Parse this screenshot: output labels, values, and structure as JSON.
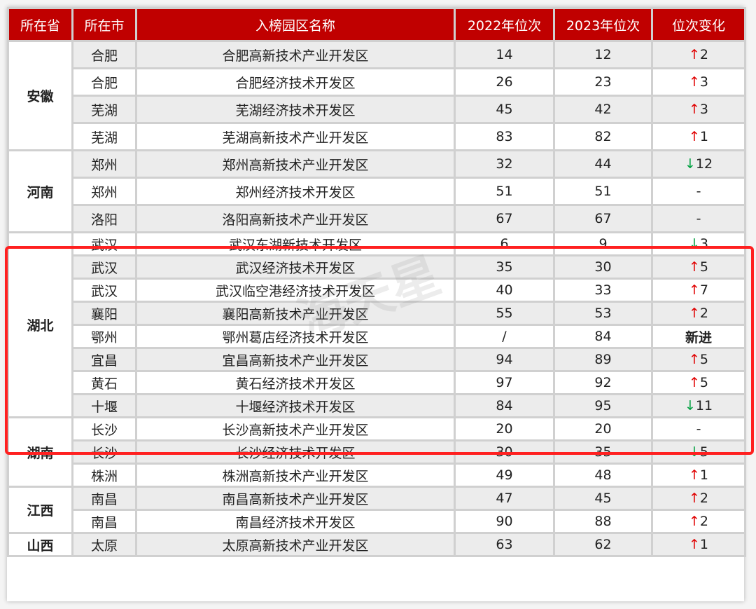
{
  "headers": [
    "所在省",
    "所在市",
    "入榜园区名称",
    "2022年位次",
    "2023年位次",
    "位次变化"
  ],
  "watermark": "海天星",
  "colors": {
    "header": "#c00000",
    "up": "#e00000",
    "down": "#00a040",
    "highlight": "#ff2020"
  },
  "groups": [
    {
      "province": "安徽",
      "size": "tall",
      "rows": [
        {
          "city": "合肥",
          "name": "合肥高新技术产业开发区",
          "y2022": "14",
          "y2023": "12",
          "dir": "up",
          "change": "2"
        },
        {
          "city": "合肥",
          "name": "合肥经济技术开发区",
          "y2022": "26",
          "y2023": "23",
          "dir": "up",
          "change": "3"
        },
        {
          "city": "芜湖",
          "name": "芜湖经济技术开发区",
          "y2022": "45",
          "y2023": "42",
          "dir": "up",
          "change": "3"
        },
        {
          "city": "芜湖",
          "name": "芜湖高新技术产业开发区",
          "y2022": "83",
          "y2023": "82",
          "dir": "up",
          "change": "1"
        }
      ]
    },
    {
      "province": "河南",
      "size": "tall",
      "rows": [
        {
          "city": "郑州",
          "name": "郑州高新技术产业开发区",
          "y2022": "32",
          "y2023": "44",
          "dir": "down",
          "change": "12"
        },
        {
          "city": "郑州",
          "name": "郑州经济技术开发区",
          "y2022": "51",
          "y2023": "51",
          "dir": "none",
          "change": "-"
        },
        {
          "city": "洛阳",
          "name": "洛阳高新技术产业开发区",
          "y2022": "67",
          "y2023": "67",
          "dir": "none",
          "change": "-"
        }
      ]
    },
    {
      "province": "湖北",
      "size": "short",
      "rows": [
        {
          "city": "武汉",
          "name": "武汉东湖新技术开发区",
          "y2022": "6",
          "y2023": "9",
          "dir": "down",
          "change": "3"
        },
        {
          "city": "武汉",
          "name": "武汉经济技术开发区",
          "y2022": "35",
          "y2023": "30",
          "dir": "up",
          "change": "5"
        },
        {
          "city": "武汉",
          "name": "武汉临空港经济技术开发区",
          "y2022": "40",
          "y2023": "33",
          "dir": "up",
          "change": "7"
        },
        {
          "city": "襄阳",
          "name": "襄阳高新技术产业开发区",
          "y2022": "55",
          "y2023": "53",
          "dir": "up",
          "change": "2"
        },
        {
          "city": "鄂州",
          "name": "鄂州葛店经济技术开发区",
          "y2022": "/",
          "y2023": "84",
          "dir": "new",
          "change": "新进"
        },
        {
          "city": "宜昌",
          "name": "宜昌高新技术产业开发区",
          "y2022": "94",
          "y2023": "89",
          "dir": "up",
          "change": "5"
        },
        {
          "city": "黄石",
          "name": "黄石经济技术开发区",
          "y2022": "97",
          "y2023": "92",
          "dir": "up",
          "change": "5"
        },
        {
          "city": "十堰",
          "name": "十堰经济技术开发区",
          "y2022": "84",
          "y2023": "95",
          "dir": "down",
          "change": "11"
        }
      ]
    },
    {
      "province": "湖南",
      "size": "short",
      "rows": [
        {
          "city": "长沙",
          "name": "长沙高新技术产业开发区",
          "y2022": "20",
          "y2023": "20",
          "dir": "none",
          "change": "-"
        },
        {
          "city": "长沙",
          "name": "长沙经济技术开发区",
          "y2022": "30",
          "y2023": "35",
          "dir": "down",
          "change": "5"
        },
        {
          "city": "株洲",
          "name": "株洲高新技术产业开发区",
          "y2022": "49",
          "y2023": "48",
          "dir": "up",
          "change": "1"
        }
      ]
    },
    {
      "province": "江西",
      "size": "short",
      "rows": [
        {
          "city": "南昌",
          "name": "南昌高新技术产业开发区",
          "y2022": "47",
          "y2023": "45",
          "dir": "up",
          "change": "2"
        },
        {
          "city": "南昌",
          "name": "南昌经济技术开发区",
          "y2022": "90",
          "y2023": "88",
          "dir": "up",
          "change": "2"
        }
      ]
    },
    {
      "province": "山西",
      "size": "short",
      "rows": [
        {
          "city": "太原",
          "name": "太原高新技术产业开发区",
          "y2022": "63",
          "y2023": "62",
          "dir": "up",
          "change": "1"
        }
      ]
    }
  ]
}
